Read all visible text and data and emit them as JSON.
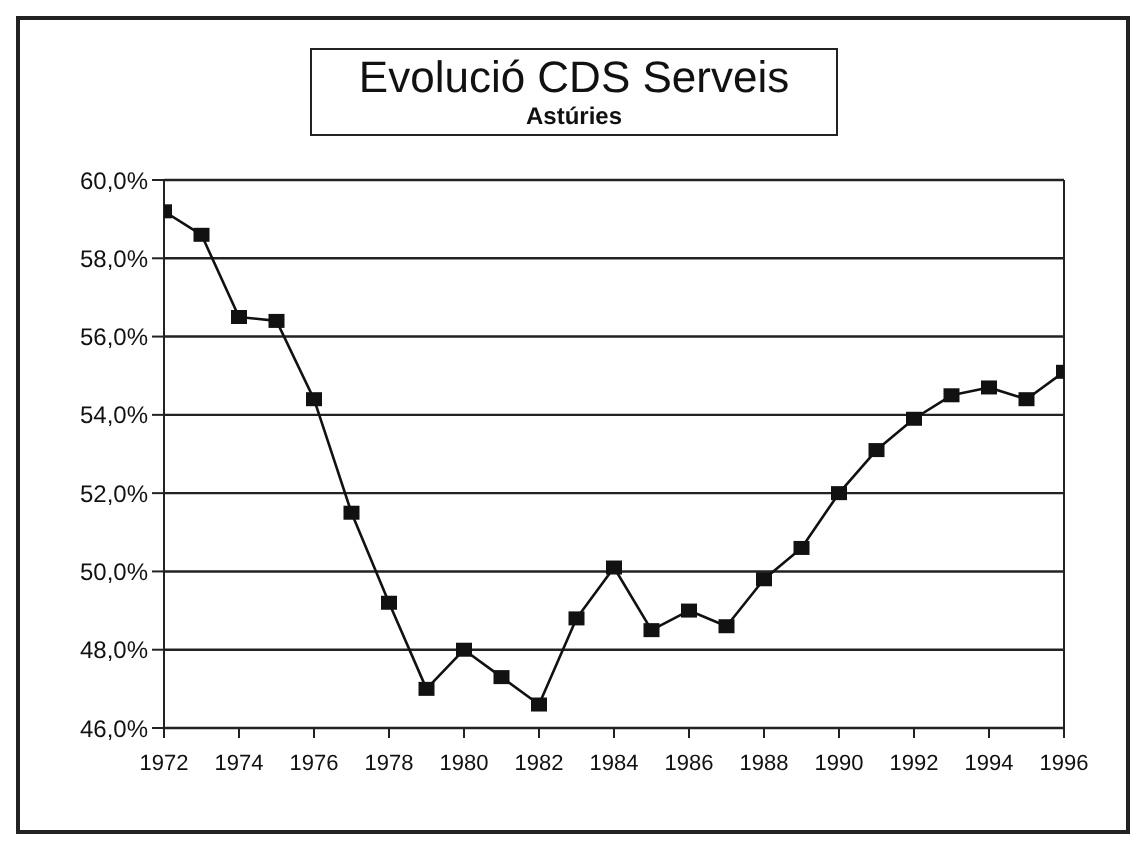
{
  "chart_data": {
    "type": "line",
    "title": "Evolució CDS Serveis",
    "subtitle": "Astúries",
    "x": [
      1972,
      1973,
      1974,
      1975,
      1976,
      1977,
      1978,
      1979,
      1980,
      1981,
      1982,
      1983,
      1984,
      1985,
      1986,
      1987,
      1988,
      1989,
      1990,
      1991,
      1992,
      1993,
      1994,
      1995,
      1996
    ],
    "series": [
      {
        "color": "#111111",
        "values": [
          59.2,
          58.6,
          56.5,
          56.4,
          54.4,
          51.5,
          49.2,
          47.0,
          48.0,
          47.3,
          46.6,
          48.8,
          50.1,
          48.5,
          49.0,
          48.6,
          49.8,
          50.6,
          52.0,
          53.1,
          53.9,
          54.5,
          54.7,
          54.4,
          55.1
        ]
      }
    ],
    "xlim": [
      1972,
      1996
    ],
    "xticks": [
      1972,
      1974,
      1976,
      1978,
      1980,
      1982,
      1984,
      1986,
      1988,
      1990,
      1992,
      1994,
      1996
    ],
    "ylim": [
      46,
      60
    ],
    "yticks": [
      {
        "value": 46,
        "label": "46,0%"
      },
      {
        "value": 48,
        "label": "48,0%"
      },
      {
        "value": 50,
        "label": "50,0%"
      },
      {
        "value": 52,
        "label": "52,0%"
      },
      {
        "value": 54,
        "label": "54,0%"
      },
      {
        "value": 56,
        "label": "56,0%"
      },
      {
        "value": 58,
        "label": "58,0%"
      },
      {
        "value": 60,
        "label": "60,0%"
      }
    ],
    "grid": "y",
    "marker": "square",
    "line_style": "solid",
    "legend": false
  }
}
